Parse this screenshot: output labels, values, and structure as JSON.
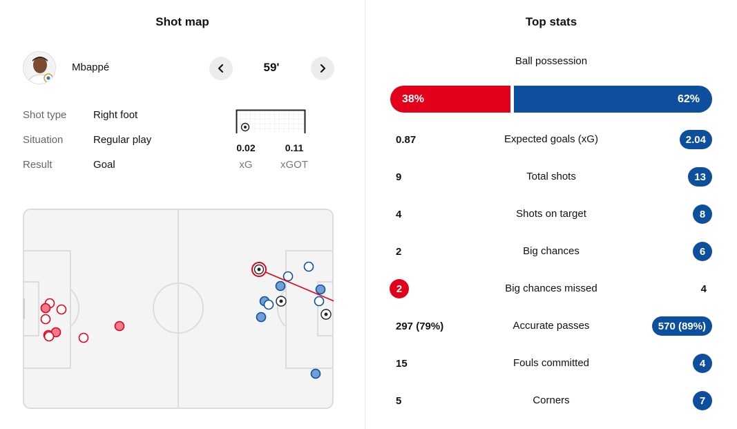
{
  "shotmap": {
    "title": "Shot map",
    "player": "Mbappé",
    "minute": "59'",
    "details": [
      {
        "label": "Shot type",
        "value": "Right foot"
      },
      {
        "label": "Situation",
        "value": "Regular play"
      },
      {
        "label": "Result",
        "value": "Goal"
      }
    ],
    "xg": {
      "value": "0.02",
      "label": "xG"
    },
    "xgot": {
      "value": "0.11",
      "label": "xGOT"
    },
    "icons": {
      "prev": "chevron-left-icon",
      "next": "chevron-right-icon"
    },
    "colors": {
      "home": "#e3001b",
      "away": "#0d4f9c"
    }
  },
  "stats": {
    "title": "Top stats",
    "possession": {
      "label": "Ball possession",
      "home": "38%",
      "away": "62%"
    },
    "rows": [
      {
        "label": "Expected goals (xG)",
        "home": "0.87",
        "away": "2.04",
        "highlight": "away"
      },
      {
        "label": "Total shots",
        "home": "9",
        "away": "13",
        "highlight": "away"
      },
      {
        "label": "Shots on target",
        "home": "4",
        "away": "8",
        "highlight": "away"
      },
      {
        "label": "Big chances",
        "home": "2",
        "away": "6",
        "highlight": "away"
      },
      {
        "label": "Big chances missed",
        "home": "2",
        "away": "4",
        "highlight": "home"
      },
      {
        "label": "Accurate passes",
        "home": "297 (79%)",
        "away": "570 (89%)",
        "highlight": "away"
      },
      {
        "label": "Fouls committed",
        "home": "15",
        "away": "4",
        "highlight": "away"
      },
      {
        "label": "Corners",
        "home": "5",
        "away": "7",
        "highlight": "away"
      }
    ]
  }
}
